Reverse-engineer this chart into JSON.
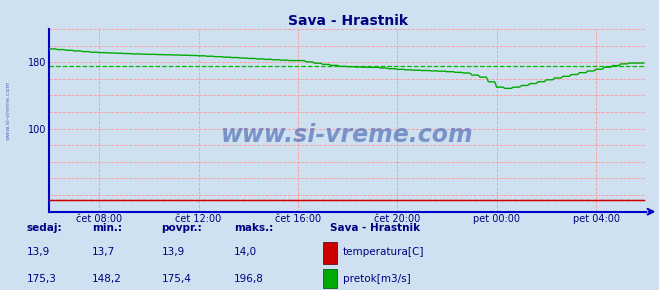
{
  "title": "Sava - Hrastnik",
  "title_color": "#000080",
  "fig_bg_color": "#cfe0f0",
  "plot_bg_color": "#cfe0f0",
  "grid_color_h": "#ff9999",
  "grid_color_v": "#ff9999",
  "flow_avg_color": "#00bb00",
  "temp_avg_color": "#dd0000",
  "x_min": 0,
  "x_max": 288,
  "y_min": 0,
  "y_max": 220,
  "y_ticks": [
    100,
    180,
    200
  ],
  "x_tick_positions": [
    24,
    72,
    120,
    168,
    216,
    264
  ],
  "x_tick_labels": [
    "čet 08:00",
    "čet 12:00",
    "čet 16:00",
    "čet 20:00",
    "pet 00:00",
    "pet 04:00"
  ],
  "temp_color": "#cc0000",
  "flow_color": "#00aa00",
  "watermark_text": "www.si-vreme.com",
  "watermark_color": "#3355aa",
  "legend_title": "Sava - Hrastnik",
  "legend_title_color": "#000080",
  "legend_color": "#000080",
  "table_headers": [
    "sedaj:",
    "min.:",
    "povpr.:",
    "maks.:"
  ],
  "temp_values": [
    13.9,
    13.7,
    13.9,
    14.0
  ],
  "flow_values": [
    175.3,
    148.2,
    175.4,
    196.8
  ],
  "temp_label": "temperatura[C]",
  "flow_label": "pretok[m3/s]",
  "temp_avg": 13.9,
  "flow_avg": 175.4,
  "axis_color": "#0000cc",
  "tick_color": "#000080",
  "sidewater_text": "www.si-vreme.com"
}
